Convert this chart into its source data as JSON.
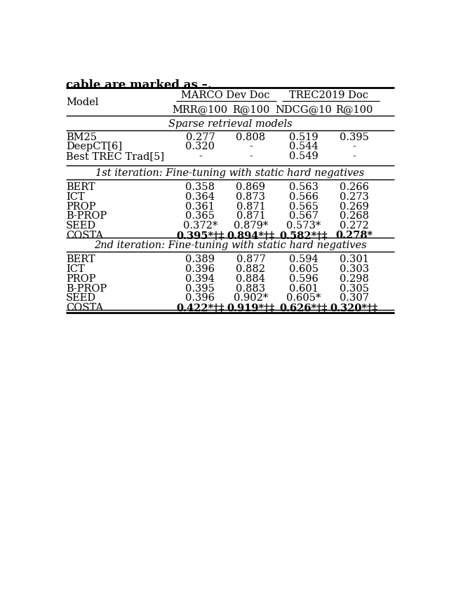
{
  "caption_top": "cable are marked as –.",
  "header_groups": [
    {
      "label": "MARCO Dev Doc"
    },
    {
      "label": "TREC2019 Doc"
    }
  ],
  "col_headers": [
    "MRR@100",
    "R@100",
    "NDCG@10",
    "R@100"
  ],
  "model_col": "Model",
  "sections": [
    {
      "section_label": "Sparse retrieval models",
      "rows": [
        {
          "model": "BM25",
          "vals": [
            "0.277",
            "0.808",
            "0.519",
            "0.395"
          ],
          "bold": [
            false,
            false,
            false,
            false
          ]
        },
        {
          "model": "DeepCT[6]",
          "vals": [
            "0.320",
            "-",
            "0.544",
            "-"
          ],
          "bold": [
            false,
            false,
            false,
            false
          ]
        },
        {
          "model": "Best TREC Trad[5]",
          "vals": [
            "-",
            "-",
            "0.549",
            "-"
          ],
          "bold": [
            false,
            false,
            false,
            false
          ]
        }
      ]
    },
    {
      "section_label": "1st iteration: Fine-tuning with static hard negatives",
      "rows": [
        {
          "model": "BERT",
          "vals": [
            "0.358",
            "0.869",
            "0.563",
            "0.266"
          ],
          "bold": [
            false,
            false,
            false,
            false
          ]
        },
        {
          "model": "ICT",
          "vals": [
            "0.364",
            "0.873",
            "0.566",
            "0.273"
          ],
          "bold": [
            false,
            false,
            false,
            false
          ]
        },
        {
          "model": "PROP",
          "vals": [
            "0.361",
            "0.871",
            "0.565",
            "0.269"
          ],
          "bold": [
            false,
            false,
            false,
            false
          ]
        },
        {
          "model": "B-PROP",
          "vals": [
            "0.365",
            "0.871",
            "0.567",
            "0.268"
          ],
          "bold": [
            false,
            false,
            false,
            false
          ]
        },
        {
          "model": "SEED",
          "vals": [
            "0.372*",
            "0.879*",
            "0.573*",
            "0.272"
          ],
          "bold": [
            false,
            false,
            false,
            false
          ]
        },
        {
          "model": "COSTA",
          "vals": [
            "0.395*†‡",
            "0.894*†‡",
            "0.582*†‡",
            "0.278*"
          ],
          "bold": [
            true,
            true,
            true,
            true
          ]
        }
      ]
    },
    {
      "section_label": "2nd iteration: Fine-tuning with static hard negatives",
      "rows": [
        {
          "model": "BERT",
          "vals": [
            "0.389",
            "0.877",
            "0.594",
            "0.301"
          ],
          "bold": [
            false,
            false,
            false,
            false
          ]
        },
        {
          "model": "ICT",
          "vals": [
            "0.396",
            "0.882",
            "0.605",
            "0.303"
          ],
          "bold": [
            false,
            false,
            false,
            false
          ]
        },
        {
          "model": "PROP",
          "vals": [
            "0.394",
            "0.884",
            "0.596",
            "0.298"
          ],
          "bold": [
            false,
            false,
            false,
            false
          ]
        },
        {
          "model": "B-PROP",
          "vals": [
            "0.395",
            "0.883",
            "0.601",
            "0.305"
          ],
          "bold": [
            false,
            false,
            false,
            false
          ]
        },
        {
          "model": "SEED",
          "vals": [
            "0.396",
            "0.902*",
            "0.605*",
            "0.307"
          ],
          "bold": [
            false,
            false,
            false,
            false
          ]
        },
        {
          "model": "COSTA",
          "vals": [
            "0.422*†‡",
            "0.919*†‡",
            "0.626*†‡",
            "0.320*†‡"
          ],
          "bold": [
            true,
            true,
            true,
            true
          ]
        }
      ]
    }
  ],
  "bg_color": "#ffffff",
  "text_color": "#000000",
  "font_size": 10.5,
  "caption_font_size": 12
}
